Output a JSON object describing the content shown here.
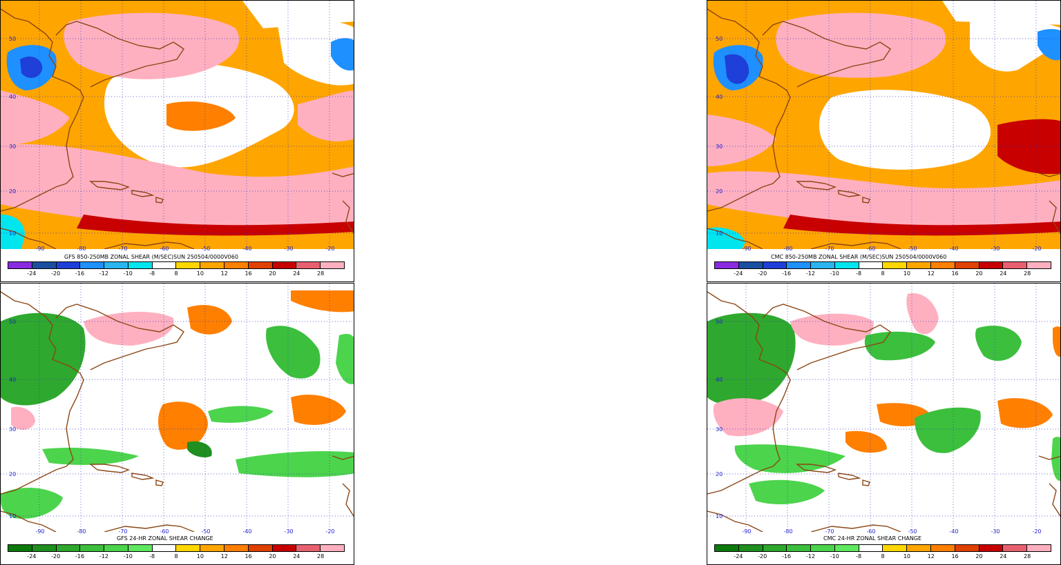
{
  "panels": [
    {
      "id": "gfs-shear",
      "caption": "GFS 850-250MB ZONAL SHEAR (M/SEC)SUN 250504/0000V060",
      "kind": "shear",
      "model": "gfs"
    },
    {
      "id": "cmc-shear",
      "caption": "CMC 850-250MB ZONAL SHEAR (M/SEC)SUN 250504/0000V060",
      "kind": "shear",
      "model": "cmc"
    },
    {
      "id": "gfs-change",
      "caption": "GFS 24-HR ZONAL SHEAR CHANGE",
      "kind": "change",
      "model": "gfs"
    },
    {
      "id": "cmc-change",
      "caption": "CMC 24-HR ZONAL SHEAR CHANGE",
      "kind": "change",
      "model": "cmc"
    }
  ],
  "lat_labels": [
    "50",
    "40",
    "30",
    "20",
    "10"
  ],
  "lon_labels": [
    "-90",
    "-80",
    "-70",
    "-60",
    "-50",
    "-40",
    "-30",
    "-20"
  ],
  "colorbar_labels": [
    "-24",
    "-20",
    "-16",
    "-12",
    "-10",
    "-8",
    "8",
    "10",
    "12",
    "16",
    "20",
    "24",
    "28"
  ],
  "colors": {
    "shear_scale": [
      "#8a2be2",
      "#1a4fa0",
      "#1e3fd8",
      "#1e90ff",
      "#2ab5f0",
      "#00e5ee",
      "#ffffff",
      "#ffd700",
      "#ffa500",
      "#ff7f00",
      "#e04000",
      "#c80000",
      "#e86070",
      "#ffb0c0"
    ],
    "change_scale": [
      "#0b7a0b",
      "#1f8f1f",
      "#2ea82e",
      "#3cbf3c",
      "#4cd44c",
      "#5ee85e",
      "#ffffff",
      "#ffd700",
      "#ffa500",
      "#ff7f00",
      "#e04000",
      "#c80000",
      "#e86070",
      "#ffb0c0"
    ],
    "coastline": "#8b4513",
    "grid": "#3333cc"
  }
}
